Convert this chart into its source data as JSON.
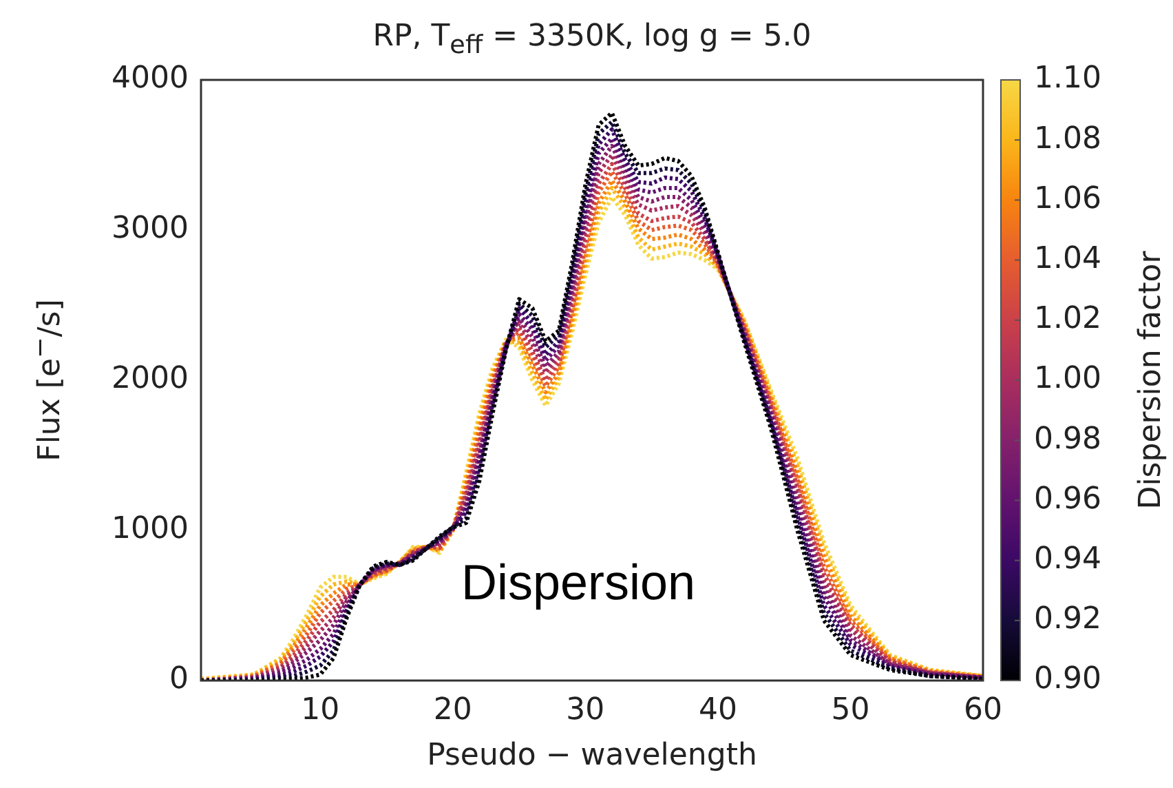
{
  "chart_data": {
    "type": "line",
    "title": "RP,  T$_{eff}$ = 3350K,  log g = 5.0",
    "xlabel": "Pseudo − wavelength",
    "ylabel": "Flux [e$^{−}$/s]",
    "clabel": "Dispersion factor",
    "clim": [
      0.9,
      1.1
    ],
    "cticks": [
      {
        "value": 0.9,
        "label": "0.90"
      },
      0.92,
      0.94,
      0.96,
      0.98,
      {
        "value": 1.0,
        "label": "1.00"
      },
      1.02,
      1.04,
      1.06,
      1.08,
      {
        "value": 1.1,
        "label": "1.10"
      }
    ],
    "annotations": [
      "Dispersion"
    ],
    "xlim": [
      1,
      60
    ],
    "xticks": [
      10,
      20,
      30,
      40,
      50,
      60
    ],
    "ylim": [
      0,
      4000
    ],
    "yticks": [
      0,
      1000,
      2000,
      3000,
      4000
    ],
    "grid": false,
    "legend": false,
    "line_style": "dotted",
    "x": [
      1,
      5,
      7,
      8,
      9,
      10,
      11,
      12,
      13,
      14,
      15,
      16,
      17,
      18,
      19,
      20,
      21,
      22,
      23,
      24,
      25,
      26,
      27,
      28,
      29,
      30,
      31,
      32,
      33,
      34,
      35,
      36,
      37,
      38,
      39,
      40,
      42,
      44,
      46,
      48,
      50,
      53,
      56,
      60
    ],
    "series": [
      {
        "color": "#000004",
        "values": [
          0,
          0,
          0,
          10,
          20,
          40,
          150,
          420,
          640,
          760,
          790,
          770,
          800,
          880,
          960,
          1020,
          1050,
          1330,
          1780,
          2200,
          2540,
          2480,
          2260,
          2330,
          2780,
          3300,
          3700,
          3780,
          3560,
          3430,
          3440,
          3480,
          3460,
          3360,
          3150,
          2850,
          2250,
          1680,
          1000,
          400,
          170,
          70,
          30,
          10
        ]
      },
      {
        "color": "#160b39",
        "values": [
          0,
          0,
          20,
          30,
          60,
          100,
          200,
          450,
          640,
          750,
          780,
          770,
          810,
          880,
          950,
          1020,
          1080,
          1380,
          1810,
          2210,
          2510,
          2430,
          2220,
          2300,
          2730,
          3240,
          3640,
          3720,
          3510,
          3380,
          3380,
          3410,
          3400,
          3310,
          3120,
          2840,
          2270,
          1710,
          1050,
          450,
          200,
          80,
          30,
          10
        ]
      },
      {
        "color": "#3b0964",
        "values": [
          0,
          10,
          30,
          60,
          100,
          160,
          260,
          470,
          640,
          740,
          770,
          770,
          820,
          880,
          940,
          1020,
          1120,
          1420,
          1840,
          2210,
          2480,
          2380,
          2170,
          2260,
          2690,
          3180,
          3570,
          3670,
          3470,
          3320,
          3310,
          3350,
          3340,
          3260,
          3080,
          2830,
          2280,
          1730,
          1100,
          500,
          240,
          90,
          40,
          10
        ]
      },
      {
        "color": "#61136e",
        "values": [
          0,
          10,
          50,
          90,
          140,
          210,
          310,
          500,
          640,
          740,
          770,
          780,
          830,
          880,
          930,
          1010,
          1150,
          1470,
          1870,
          2220,
          2440,
          2340,
          2130,
          2230,
          2640,
          3120,
          3510,
          3610,
          3420,
          3270,
          3250,
          3280,
          3280,
          3200,
          3050,
          2820,
          2300,
          1760,
          1140,
          560,
          270,
          100,
          40,
          20
        ]
      },
      {
        "color": "#85216b",
        "values": [
          0,
          20,
          60,
          120,
          190,
          270,
          370,
          530,
          640,
          730,
          760,
          780,
          840,
          880,
          920,
          1010,
          1180,
          1510,
          1900,
          2230,
          2410,
          2290,
          2090,
          2190,
          2600,
          3060,
          3440,
          3560,
          3380,
          3220,
          3190,
          3220,
          3220,
          3150,
          3010,
          2810,
          2310,
          1780,
          1190,
          610,
          300,
          110,
          50,
          20
        ]
      },
      {
        "color": "#a92e5e",
        "values": [
          0,
          20,
          80,
          140,
          230,
          330,
          420,
          560,
          640,
          720,
          750,
          780,
          850,
          890,
          910,
          1010,
          1220,
          1560,
          1930,
          2240,
          2380,
          2240,
          2050,
          2160,
          2550,
          3000,
          3380,
          3500,
          3330,
          3170,
          3130,
          3150,
          3160,
          3100,
          2980,
          2800,
          2330,
          1810,
          1240,
          660,
          340,
          120,
          50,
          20
        ]
      },
      {
        "color": "#cb4149",
        "values": [
          0,
          20,
          90,
          170,
          270,
          390,
          470,
          580,
          640,
          710,
          740,
          780,
          850,
          890,
          890,
          1010,
          1250,
          1600,
          1960,
          2240,
          2350,
          2190,
          2000,
          2120,
          2500,
          2940,
          3310,
          3440,
          3280,
          3110,
          3060,
          3080,
          3090,
          3050,
          2940,
          2780,
          2340,
          1830,
          1290,
          710,
          370,
          130,
          50,
          20
        ]
      },
      {
        "color": "#e65d2f",
        "values": [
          0,
          30,
          110,
          200,
          310,
          450,
          530,
          610,
          640,
          700,
          730,
          780,
          860,
          890,
          880,
          1010,
          1280,
          1650,
          1990,
          2250,
          2320,
          2140,
          1960,
          2090,
          2460,
          2880,
          3250,
          3390,
          3240,
          3060,
          3000,
          3020,
          3030,
          3000,
          2910,
          2770,
          2360,
          1860,
          1340,
          760,
          400,
          140,
          60,
          20
        ]
      },
      {
        "color": "#f78410",
        "values": [
          0,
          30,
          120,
          230,
          360,
          500,
          580,
          640,
          640,
          700,
          730,
          790,
          870,
          890,
          870,
          1000,
          1310,
          1690,
          2020,
          2260,
          2280,
          2100,
          1920,
          2050,
          2410,
          2820,
          3180,
          3330,
          3190,
          3010,
          2940,
          2950,
          2970,
          2940,
          2870,
          2760,
          2370,
          1880,
          1380,
          820,
          430,
          150,
          60,
          30
        ]
      },
      {
        "color": "#fbb61a",
        "values": [
          10,
          40,
          140,
          250,
          400,
          560,
          640,
          660,
          640,
          690,
          720,
          790,
          880,
          890,
          860,
          1000,
          1350,
          1740,
          2050,
          2260,
          2250,
          2050,
          1870,
          2020,
          2370,
          2760,
          3120,
          3280,
          3150,
          2950,
          2870,
          2890,
          2910,
          2890,
          2840,
          2750,
          2390,
          1910,
          1430,
          870,
          470,
          160,
          70,
          30
        ]
      },
      {
        "color": "#f6d746",
        "values": [
          10,
          40,
          150,
          280,
          440,
          620,
          690,
          690,
          640,
          680,
          710,
          790,
          890,
          890,
          850,
          1000,
          1380,
          1780,
          2080,
          2270,
          2220,
          2000,
          1830,
          1980,
          2320,
          2700,
          3050,
          3220,
          3100,
          2900,
          2810,
          2820,
          2850,
          2840,
          2800,
          2740,
          2400,
          1930,
          1480,
          920,
          500,
          170,
          70,
          30
        ]
      }
    ]
  }
}
